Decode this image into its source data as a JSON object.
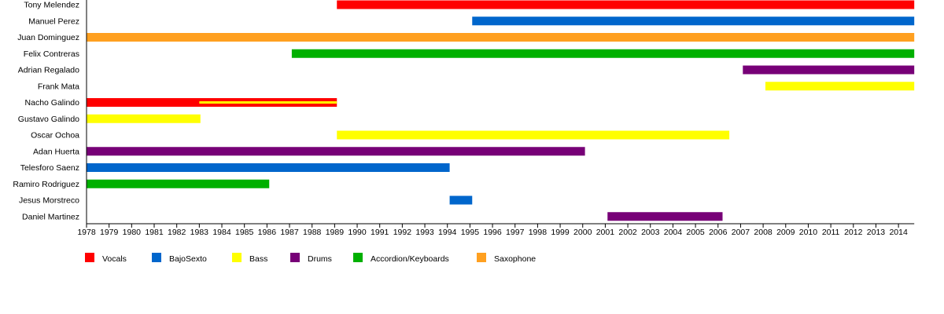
{
  "chart_data": {
    "type": "timeline",
    "title": "",
    "xlim": [
      1978,
      2014.7
    ],
    "x_ticks": [
      1978,
      1979,
      1980,
      1981,
      1982,
      1983,
      1984,
      1985,
      1986,
      1987,
      1988,
      1989,
      1990,
      1991,
      1992,
      1993,
      1994,
      1995,
      1996,
      1997,
      1998,
      1999,
      2000,
      2001,
      2002,
      2003,
      2004,
      2005,
      2006,
      2007,
      2008,
      2009,
      2010,
      2011,
      2012,
      2013,
      2014
    ],
    "legend": [
      {
        "label": "Vocals",
        "color": "#ff0000"
      },
      {
        "label": "BajoSexto",
        "color": "#0066cc"
      },
      {
        "label": "Bass",
        "color": "#ffff00"
      },
      {
        "label": "Drums",
        "color": "#770077"
      },
      {
        "label": "Accordion/Keyboards",
        "color": "#00b000"
      },
      {
        "label": "Saxophone",
        "color": "#ffa020"
      }
    ],
    "legend_position": "bottom-left",
    "members": [
      {
        "name": "Tony Melendez",
        "bars": [
          {
            "role": 0,
            "start": 1989.1,
            "end": 2014.7
          }
        ]
      },
      {
        "name": "Manuel Perez",
        "bars": [
          {
            "role": 1,
            "start": 1995.1,
            "end": 2014.7
          }
        ]
      },
      {
        "name": "Juan Dominguez",
        "bars": [
          {
            "role": 5,
            "start": 1978,
            "end": 2014.7
          }
        ]
      },
      {
        "name": "Felix Contreras",
        "bars": [
          {
            "role": 4,
            "start": 1987.1,
            "end": 2014.7
          }
        ]
      },
      {
        "name": "Adrian Regalado",
        "bars": [
          {
            "role": 3,
            "start": 2007.1,
            "end": 2014.7
          }
        ]
      },
      {
        "name": "Frank Mata",
        "bars": [
          {
            "role": 2,
            "start": 2008.1,
            "end": 2014.7
          }
        ]
      },
      {
        "name": "Nacho Galindo",
        "bars": [
          {
            "role": 0,
            "start": 1978,
            "end": 1989.1
          },
          {
            "role": 2,
            "start": 1983,
            "end": 1989.1,
            "thin": true
          }
        ]
      },
      {
        "name": "Gustavo Galindo",
        "bars": [
          {
            "role": 2,
            "start": 1978,
            "end": 1983.05
          }
        ]
      },
      {
        "name": "Oscar Ochoa",
        "bars": [
          {
            "role": 2,
            "start": 1989.1,
            "end": 2006.5
          }
        ]
      },
      {
        "name": "Adan Huerta",
        "bars": [
          {
            "role": 3,
            "start": 1978,
            "end": 2000.1
          }
        ]
      },
      {
        "name": "Telesforo Saenz",
        "bars": [
          {
            "role": 1,
            "start": 1978,
            "end": 1994.1
          }
        ]
      },
      {
        "name": "Ramiro Rodriguez",
        "bars": [
          {
            "role": 4,
            "start": 1978,
            "end": 1986.1
          }
        ]
      },
      {
        "name": "Jesus Morstreco",
        "bars": [
          {
            "role": 1,
            "start": 1994.1,
            "end": 1995.1
          }
        ]
      },
      {
        "name": "Daniel Martinez",
        "bars": [
          {
            "role": 3,
            "start": 2001.1,
            "end": 2006.2
          }
        ]
      }
    ]
  }
}
